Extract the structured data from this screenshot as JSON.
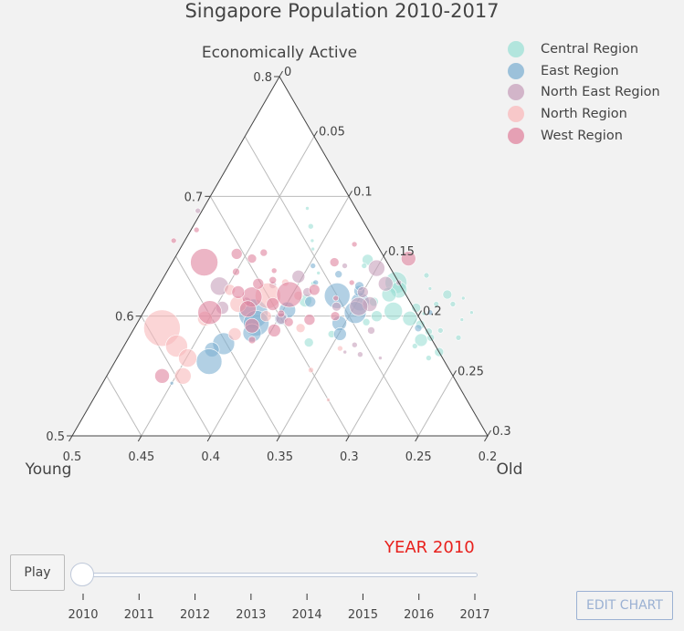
{
  "chart_data": {
    "type": "scatter",
    "subtype": "ternary",
    "title": "Singapore Population 2010-2017",
    "axes": {
      "a": {
        "title": "Economically Active",
        "range": [
          0.5,
          0.8
        ],
        "ticks": [
          "0.8",
          "0.7",
          "0.6",
          "0.5"
        ]
      },
      "b": {
        "title": "Young",
        "range": [
          0.2,
          0.5
        ],
        "ticks": [
          "0.5",
          "0.45",
          "0.4",
          "0.35",
          "0.3",
          "0.25",
          "0.2"
        ]
      },
      "c": {
        "title": "Old",
        "range": [
          0,
          0.3
        ],
        "ticks": [
          "0",
          "0.05",
          "0.1",
          "0.15",
          "0.2",
          "0.25",
          "0.3"
        ]
      }
    },
    "legend_position": "top-right",
    "grid": true,
    "series": [
      {
        "name": "Central Region",
        "color": "#9ce0d6",
        "points": [
          [
            0.647,
            0.213,
            0.14,
            6
          ],
          [
            0.642,
            0.218,
            0.14,
            3
          ],
          [
            0.628,
            0.202,
            0.17,
            12
          ],
          [
            0.622,
            0.203,
            0.175,
            9
          ],
          [
            0.618,
            0.212,
            0.17,
            8
          ],
          [
            0.612,
            0.226,
            0.162,
            5
          ],
          [
            0.604,
            0.216,
            0.18,
            10
          ],
          [
            0.598,
            0.207,
            0.195,
            8
          ],
          [
            0.607,
            0.198,
            0.195,
            5
          ],
          [
            0.593,
            0.202,
            0.205,
            5
          ],
          [
            0.587,
            0.199,
            0.214,
            4
          ],
          [
            0.618,
            0.17,
            0.212,
            5
          ],
          [
            0.634,
            0.177,
            0.189,
            3
          ],
          [
            0.58,
            0.208,
            0.212,
            7
          ],
          [
            0.575,
            0.215,
            0.21,
            3
          ],
          [
            0.582,
            0.2,
            0.218,
            4
          ],
          [
            0.61,
            0.182,
            0.208,
            3
          ],
          [
            0.588,
            0.19,
            0.222,
            3
          ],
          [
            0.602,
            0.195,
            0.203,
            2
          ],
          [
            0.6,
            0.23,
            0.17,
            6
          ],
          [
            0.595,
            0.24,
            0.165,
            4
          ],
          [
            0.57,
            0.2,
            0.23,
            5
          ],
          [
            0.565,
            0.21,
            0.225,
            3
          ],
          [
            0.69,
            0.235,
            0.075,
            2
          ],
          [
            0.675,
            0.24,
            0.085,
            3
          ],
          [
            0.663,
            0.245,
            0.092,
            2
          ],
          [
            0.656,
            0.248,
            0.096,
            2
          ],
          [
            0.613,
            0.275,
            0.112,
            7
          ],
          [
            0.627,
            0.262,
            0.111,
            3
          ],
          [
            0.636,
            0.254,
            0.11,
            2
          ],
          [
            0.578,
            0.29,
            0.132,
            5
          ],
          [
            0.585,
            0.27,
            0.145,
            4
          ],
          [
            0.61,
            0.17,
            0.22,
            3
          ],
          [
            0.582,
            0.18,
            0.238,
            3
          ],
          [
            0.623,
            0.18,
            0.197,
            2
          ],
          [
            0.597,
            0.17,
            0.233,
            2
          ],
          [
            0.603,
            0.16,
            0.237,
            2
          ],
          [
            0.615,
            0.16,
            0.225,
            2
          ]
        ]
      },
      {
        "name": "East Region",
        "color": "#7fb0d2",
        "points": [
          [
            0.617,
            0.25,
            0.133,
            14
          ],
          [
            0.612,
            0.236,
            0.152,
            10
          ],
          [
            0.603,
            0.244,
            0.153,
            12
          ],
          [
            0.594,
            0.26,
            0.146,
            8
          ],
          [
            0.602,
            0.318,
            0.08,
            16
          ],
          [
            0.594,
            0.32,
            0.086,
            14
          ],
          [
            0.586,
            0.327,
            0.087,
            10
          ],
          [
            0.577,
            0.352,
            0.071,
            12
          ],
          [
            0.572,
            0.363,
            0.065,
            8
          ],
          [
            0.562,
            0.37,
            0.068,
            14
          ],
          [
            0.605,
            0.292,
            0.103,
            9
          ],
          [
            0.598,
            0.3,
            0.102,
            7
          ],
          [
            0.612,
            0.272,
            0.116,
            6
          ],
          [
            0.585,
            0.264,
            0.151,
            7
          ],
          [
            0.59,
            0.205,
            0.205,
            4
          ],
          [
            0.603,
            0.19,
            0.207,
            3
          ],
          [
            0.635,
            0.24,
            0.125,
            4
          ],
          [
            0.628,
            0.26,
            0.112,
            3
          ],
          [
            0.544,
            0.406,
            0.05,
            2
          ],
          [
            0.642,
            0.255,
            0.103,
            3
          ],
          [
            0.621,
            0.232,
            0.147,
            6
          ],
          [
            0.625,
            0.23,
            0.145,
            5
          ]
        ]
      },
      {
        "name": "North East Region",
        "color": "#c7a0bb",
        "points": [
          [
            0.64,
            0.21,
            0.15,
            9
          ],
          [
            0.627,
            0.21,
            0.163,
            8
          ],
          [
            0.62,
            0.23,
            0.15,
            6
          ],
          [
            0.61,
            0.23,
            0.16,
            8
          ],
          [
            0.608,
            0.239,
            0.153,
            10
          ],
          [
            0.633,
            0.27,
            0.097,
            7
          ],
          [
            0.62,
            0.27,
            0.11,
            5
          ],
          [
            0.626,
            0.292,
            0.082,
            4
          ],
          [
            0.608,
            0.255,
            0.137,
            5
          ],
          [
            0.588,
            0.24,
            0.172,
            4
          ],
          [
            0.625,
            0.331,
            0.044,
            10
          ],
          [
            0.607,
            0.338,
            0.055,
            7
          ],
          [
            0.598,
            0.3,
            0.102,
            6
          ],
          [
            0.612,
            0.318,
            0.07,
            5
          ],
          [
            0.576,
            0.258,
            0.166,
            3
          ],
          [
            0.568,
            0.258,
            0.174,
            3
          ],
          [
            0.57,
            0.268,
            0.162,
            2
          ],
          [
            0.688,
            0.315,
            -0.003,
            3
          ],
          [
            0.628,
            0.2,
            0.172,
            3
          ],
          [
            0.565,
            0.245,
            0.19,
            2
          ],
          [
            0.642,
            0.232,
            0.126,
            3
          ]
        ]
      },
      {
        "name": "North Region",
        "color": "#f9b9bb",
        "points": [
          [
            0.59,
            0.39,
            0.02,
            20
          ],
          [
            0.575,
            0.387,
            0.038,
            12
          ],
          [
            0.565,
            0.384,
            0.051,
            10
          ],
          [
            0.617,
            0.3,
            0.083,
            14
          ],
          [
            0.598,
            0.355,
            0.047,
            8
          ],
          [
            0.61,
            0.325,
            0.065,
            9
          ],
          [
            0.585,
            0.34,
            0.075,
            7
          ],
          [
            0.6,
            0.31,
            0.09,
            6
          ],
          [
            0.55,
            0.395,
            0.055,
            9
          ],
          [
            0.622,
            0.325,
            0.053,
            6
          ],
          [
            0.617,
            0.278,
            0.105,
            5
          ],
          [
            0.628,
            0.282,
            0.09,
            4
          ],
          [
            0.59,
            0.29,
            0.12,
            5
          ],
          [
            0.555,
            0.3,
            0.145,
            3
          ],
          [
            0.573,
            0.27,
            0.157,
            3
          ],
          [
            0.53,
            0.3,
            0.17,
            2
          ]
        ]
      },
      {
        "name": "West Region",
        "color": "#e0849f",
        "points": [
          [
            0.645,
            0.332,
            0.023,
            15
          ],
          [
            0.603,
            0.349,
            0.048,
            13
          ],
          [
            0.616,
            0.312,
            0.072,
            11
          ],
          [
            0.618,
            0.284,
            0.098,
            14
          ],
          [
            0.606,
            0.32,
            0.074,
            9
          ],
          [
            0.592,
            0.324,
            0.084,
            8
          ],
          [
            0.62,
            0.32,
            0.06,
            7
          ],
          [
            0.61,
            0.3,
            0.09,
            7
          ],
          [
            0.627,
            0.302,
            0.071,
            6
          ],
          [
            0.622,
            0.264,
            0.114,
            6
          ],
          [
            0.597,
            0.28,
            0.123,
            6
          ],
          [
            0.588,
            0.31,
            0.102,
            7
          ],
          [
            0.6,
            0.26,
            0.14,
            5
          ],
          [
            0.55,
            0.41,
            0.04,
            8
          ],
          [
            0.652,
            0.305,
            0.043,
            6
          ],
          [
            0.648,
            0.296,
            0.056,
            5
          ],
          [
            0.637,
            0.313,
            0.05,
            4
          ],
          [
            0.63,
            0.29,
            0.08,
            4
          ],
          [
            0.602,
            0.298,
            0.1,
            4
          ],
          [
            0.648,
            0.183,
            0.169,
            8
          ],
          [
            0.645,
            0.238,
            0.117,
            5
          ],
          [
            0.628,
            0.234,
            0.138,
            3
          ],
          [
            0.615,
            0.252,
            0.133,
            3
          ],
          [
            0.595,
            0.296,
            0.109,
            5
          ],
          [
            0.58,
            0.33,
            0.09,
            4
          ],
          [
            0.672,
            0.324,
            0.004,
            3
          ],
          [
            0.663,
            0.345,
            -0.008,
            3
          ],
          [
            0.653,
            0.285,
            0.062,
            4
          ],
          [
            0.638,
            0.285,
            0.077,
            3
          ],
          [
            0.66,
            0.216,
            0.124,
            3
          ]
        ]
      }
    ]
  },
  "ui": {
    "year_label": "YEAR 2010",
    "play_label": "Play",
    "edit_label": "EDIT CHART",
    "slider": {
      "years": [
        "2010",
        "2011",
        "2012",
        "2013",
        "2014",
        "2015",
        "2016",
        "2017"
      ],
      "current_index": 0
    }
  }
}
